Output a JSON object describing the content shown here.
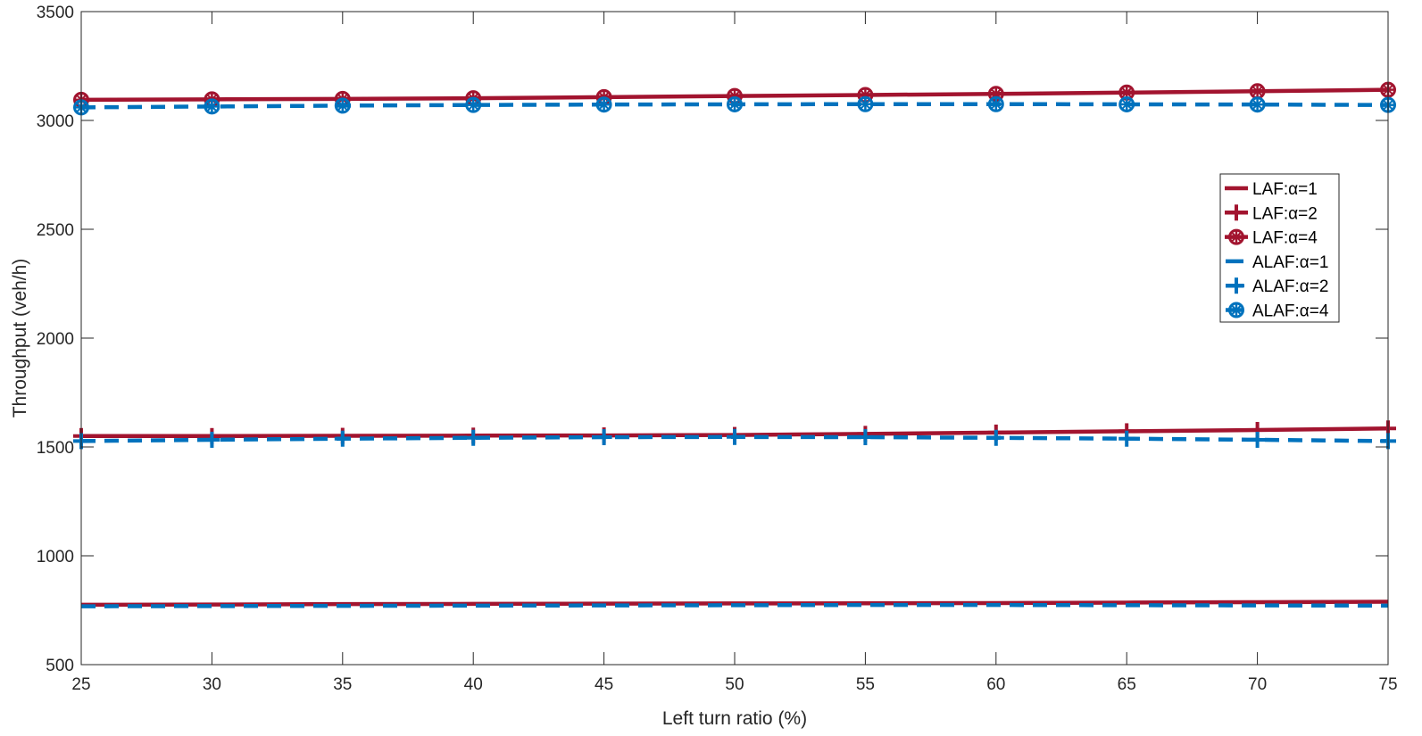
{
  "chart_data": {
    "type": "line",
    "title": "",
    "xlabel": "Left turn ratio (%)",
    "ylabel": "Throughput (veh/h)",
    "xlim": [
      25,
      75
    ],
    "ylim": [
      500,
      3500
    ],
    "x_ticks": [
      25,
      30,
      35,
      40,
      45,
      50,
      55,
      60,
      65,
      70,
      75
    ],
    "y_ticks": [
      500,
      1000,
      1500,
      2000,
      2500,
      3000,
      3500
    ],
    "grid": false,
    "legend_position": "right",
    "x": [
      25,
      30,
      35,
      40,
      45,
      50,
      55,
      60,
      65,
      70,
      75
    ],
    "series": [
      {
        "name": "LAF:α=1",
        "color": "#A2142F",
        "style": "solid",
        "marker": "none",
        "values": [
          775,
          776,
          778,
          779,
          780,
          781,
          782,
          783,
          785,
          787,
          789
        ]
      },
      {
        "name": "LAF:α=2",
        "color": "#A2142F",
        "style": "solid",
        "marker": "plus",
        "values": [
          1550,
          1550,
          1551,
          1552,
          1553,
          1555,
          1560,
          1566,
          1572,
          1578,
          1585
        ]
      },
      {
        "name": "LAF:α=4",
        "color": "#A2142F",
        "style": "solid",
        "marker": "circle",
        "values": [
          3095,
          3097,
          3099,
          3102,
          3107,
          3112,
          3117,
          3122,
          3128,
          3134,
          3141
        ]
      },
      {
        "name": "ALAF:α=1",
        "color": "#0072BD",
        "style": "dashed",
        "marker": "none",
        "values": [
          768,
          769,
          770,
          771,
          772,
          773,
          774,
          774,
          773,
          772,
          771
        ]
      },
      {
        "name": "ALAF:α=2",
        "color": "#0072BD",
        "style": "dashed",
        "marker": "plus",
        "values": [
          1527,
          1533,
          1538,
          1542,
          1545,
          1546,
          1545,
          1542,
          1538,
          1533,
          1527
        ]
      },
      {
        "name": "ALAF:α=4",
        "color": "#0072BD",
        "style": "dashed",
        "marker": "circle",
        "values": [
          3060,
          3064,
          3068,
          3071,
          3073,
          3074,
          3075,
          3075,
          3074,
          3073,
          3071
        ]
      }
    ]
  }
}
